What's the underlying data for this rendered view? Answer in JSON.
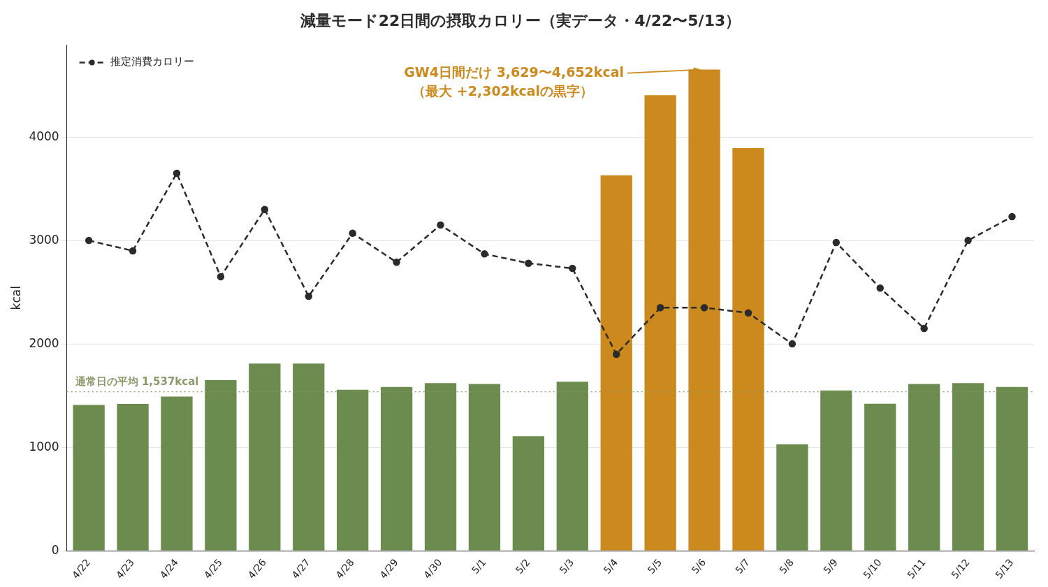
{
  "chart_data": {
    "type": "bar",
    "title": "減量モード22日間の摂取カロリー（実データ・4/22〜5/13）",
    "ylabel": "kcal",
    "categories": [
      "4/22",
      "4/23",
      "4/24",
      "4/25",
      "4/26",
      "4/27",
      "4/28",
      "4/29",
      "4/30",
      "5/1",
      "5/2",
      "5/3",
      "5/4",
      "5/5",
      "5/6",
      "5/7",
      "5/8",
      "5/9",
      "5/10",
      "5/11",
      "5/12",
      "5/13"
    ],
    "series": [
      {
        "colors": [
          "#6b8c4e",
          "#6b8c4e",
          "#6b8c4e",
          "#6b8c4e",
          "#6b8c4e",
          "#6b8c4e",
          "#6b8c4e",
          "#6b8c4e",
          "#6b8c4e",
          "#6b8c4e",
          "#6b8c4e",
          "#6b8c4e",
          "#cc8a1e",
          "#cc8a1e",
          "#cc8a1e",
          "#cc8a1e",
          "#6b8c4e",
          "#6b8c4e",
          "#6b8c4e",
          "#6b8c4e",
          "#6b8c4e",
          "#6b8c4e"
        ],
        "values": [
          1410,
          1420,
          1490,
          1650,
          1810,
          1810,
          1556,
          1584,
          1620,
          1613,
          1108,
          1634,
          3629,
          4405,
          4652,
          3893,
          1030,
          1549,
          1421,
          1613,
          1620,
          1584
        ]
      },
      {
        "type": "line",
        "name": "推定消費カロリー",
        "color": "#2b2b2b",
        "values": [
          3000,
          2900,
          3650,
          2650,
          3300,
          2460,
          3070,
          2790,
          3150,
          2870,
          2780,
          2730,
          1900,
          2350,
          2350,
          2300,
          2000,
          2980,
          2540,
          2150,
          3000,
          3230
        ]
      }
    ],
    "marker": "circle",
    "line_style": "dashed",
    "ylim": [
      0,
      4890
    ],
    "yticks": [
      0,
      1000,
      2000,
      3000,
      4000
    ],
    "grid": "y",
    "legend": "top left",
    "ref_lines": [
      {
        "axis": "y",
        "value": 1537,
        "label": "通常日の平均 1,537kcal",
        "color": "#8a9a6a",
        "line_style": "dotted"
      }
    ],
    "annotations": [
      {
        "text": "GW4日間だけ 3,629〜4,652kcal",
        "x": "5/6",
        "y": 4652
      },
      "（最大 +2,302kcalの黒字）"
    ]
  }
}
